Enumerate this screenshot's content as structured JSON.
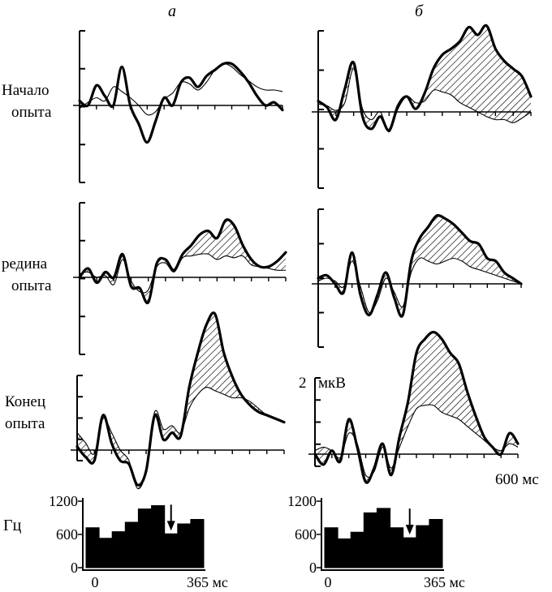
{
  "figure": {
    "column_labels": [
      "а",
      "б"
    ],
    "row_labels": [
      {
        "line1": "Начало",
        "line2": "опыта"
      },
      {
        "line1": "редина",
        "line2": "опыта"
      },
      {
        "line1": "Конец",
        "line2": "опыта"
      }
    ],
    "scale_label": "2",
    "scale_unit": "мкВ",
    "time_end_label": "600 мс",
    "colors": {
      "ink": "#000000",
      "background": "#ffffff"
    }
  },
  "chart_data": [
    {
      "type": "line",
      "panel": "а / Начало опыта",
      "x": [
        0,
        25,
        50,
        75,
        100,
        125,
        150,
        175,
        200,
        225,
        250,
        275,
        300,
        325,
        350,
        375,
        400,
        425,
        450,
        475,
        500,
        525,
        550,
        575,
        600
      ],
      "series": [
        {
          "style": "thick",
          "values": [
            0.3,
            0,
            1.3,
            0.6,
            0,
            2.5,
            0,
            -1.2,
            -2.4,
            -1.0,
            0.5,
            0,
            1.5,
            1.8,
            1.2,
            1.9,
            2.3,
            2.7,
            2.7,
            2.2,
            1.5,
            0.6,
            0,
            0.2,
            -0.3
          ]
        },
        {
          "style": "thin",
          "values": [
            -0.2,
            0.2,
            0.5,
            0.3,
            1.2,
            0.9,
            0.5,
            0,
            -0.6,
            -0.4,
            0.4,
            0.8,
            1.5,
            1.4,
            1.0,
            1.5,
            2.3,
            2.7,
            2.5,
            2.0,
            1.6,
            1.2,
            1.0,
            1.0,
            0.9
          ]
        }
      ],
      "shaded_between": false
    },
    {
      "type": "line",
      "panel": "б / Начало опыта",
      "x": [
        0,
        25,
        50,
        75,
        100,
        125,
        150,
        175,
        200,
        225,
        250,
        275,
        300,
        325,
        350,
        375,
        400,
        425,
        450,
        475,
        500,
        525,
        550,
        575,
        600
      ],
      "series": [
        {
          "style": "thick",
          "values": [
            0.7,
            0.3,
            -0.5,
            1.5,
            3.2,
            -0.3,
            -1.1,
            -0.3,
            -1.2,
            0.4,
            1.0,
            0.2,
            1.2,
            2.8,
            3.7,
            4.1,
            4.6,
            5.5,
            5.0,
            5.6,
            4.1,
            3.3,
            2.8,
            2.3,
            1.0
          ]
        },
        {
          "style": "thin",
          "values": [
            0.5,
            0.4,
            0.1,
            0.6,
            2.8,
            0.2,
            -0.5,
            0,
            -1.3,
            0.2,
            1.0,
            0.6,
            0.7,
            1.4,
            1.3,
            1.1,
            0.6,
            0.3,
            0,
            -0.3,
            -0.5,
            -0.5,
            -0.7,
            -0.4,
            0
          ]
        }
      ],
      "shaded_between": true
    },
    {
      "type": "line",
      "panel": "а / Середина опыта",
      "x": [
        0,
        25,
        50,
        75,
        100,
        125,
        150,
        175,
        200,
        225,
        250,
        275,
        300,
        325,
        350,
        375,
        400,
        425,
        450,
        475,
        500,
        525,
        550,
        575,
        600
      ],
      "series": [
        {
          "style": "thick",
          "values": [
            0,
            0.5,
            -0.3,
            0.3,
            0,
            1.3,
            -0.5,
            -0.6,
            -1.4,
            0.8,
            1.0,
            0.4,
            1.3,
            1.8,
            2.4,
            2.6,
            2.2,
            3.2,
            2.9,
            1.8,
            1.0,
            0.6,
            0.6,
            0.9,
            1.4
          ]
        },
        {
          "style": "thin",
          "values": [
            0.2,
            0.3,
            0,
            0.1,
            -0.4,
            1.0,
            -0.2,
            -0.8,
            -0.7,
            0.6,
            0.8,
            0.3,
            1.1,
            1.2,
            1.3,
            1.3,
            1.0,
            1.2,
            1.1,
            1.2,
            0.7,
            0.6,
            0.5,
            0.4,
            0.4
          ]
        }
      ],
      "shaded_between": true
    },
    {
      "type": "line",
      "panel": "б / Середина опыта",
      "x": [
        0,
        25,
        50,
        75,
        100,
        125,
        150,
        175,
        200,
        225,
        250,
        275,
        300,
        325,
        350,
        375,
        400,
        425,
        450,
        475,
        500,
        525,
        550,
        575,
        600
      ],
      "series": [
        {
          "style": "thick",
          "values": [
            0.2,
            0.3,
            0,
            -0.3,
            1.1,
            -0.4,
            -1.1,
            -0.4,
            0.4,
            -0.5,
            -1.1,
            0.8,
            1.6,
            2.0,
            2.4,
            2.3,
            2.1,
            1.8,
            1.5,
            1.4,
            0.9,
            0.8,
            0.4,
            0.2,
            0
          ]
        },
        {
          "style": "thin",
          "values": [
            0.1,
            0.2,
            0.1,
            -0.1,
            0.8,
            -0.1,
            -1.0,
            -0.6,
            0.2,
            -0.3,
            -0.8,
            0.4,
            0.9,
            0.8,
            0.7,
            0.8,
            0.9,
            0.8,
            0.6,
            0.5,
            0.4,
            0.3,
            0.2,
            0.1,
            0
          ]
        }
      ],
      "shaded_between": true
    },
    {
      "type": "line",
      "panel": "а / Конец опыта",
      "x": [
        0,
        25,
        50,
        75,
        100,
        125,
        150,
        175,
        200,
        225,
        250,
        275,
        300,
        325,
        350,
        375,
        400,
        425,
        450,
        475,
        500,
        525,
        550,
        575,
        600
      ],
      "series": [
        {
          "style": "thick",
          "values": [
            0.1,
            -0.2,
            -0.3,
            1.0,
            0.2,
            -0.3,
            -0.4,
            -1.0,
            -0.6,
            1.0,
            0.3,
            0.5,
            0.4,
            1.8,
            2.8,
            3.6,
            3.9,
            2.8,
            2.1,
            1.6,
            1.3,
            1.1,
            1.0,
            0.9,
            0.8
          ]
        },
        {
          "style": "thin",
          "values": [
            0.5,
            0.2,
            -0.1,
            0.9,
            0.5,
            0,
            -0.3,
            -1.1,
            -0.6,
            1.1,
            0.6,
            0.7,
            0.5,
            1.2,
            1.6,
            1.8,
            1.7,
            1.6,
            1.5,
            1.5,
            1.4,
            1.2,
            1.0,
            0.9,
            0.8
          ]
        }
      ],
      "shaded_between": true
    },
    {
      "type": "line",
      "panel": "б / Конец опыта",
      "x": [
        0,
        25,
        50,
        75,
        100,
        125,
        150,
        175,
        200,
        225,
        250,
        275,
        300,
        325,
        350,
        375,
        400,
        425,
        450,
        475,
        500,
        525,
        550,
        575,
        600
      ],
      "series": [
        {
          "style": "thick",
          "values": [
            0,
            -0.3,
            0.1,
            -0.2,
            1.0,
            0.2,
            -0.8,
            -0.4,
            0.3,
            -0.6,
            0.5,
            1.5,
            2.9,
            3.3,
            3.5,
            3.3,
            2.9,
            2.6,
            1.8,
            1.1,
            0.5,
            0.2,
            0,
            0.6,
            0.3
          ]
        },
        {
          "style": "thin",
          "values": [
            0.1,
            0.2,
            0.1,
            -0.1,
            0.6,
            0.3,
            -0.6,
            -0.5,
            0.2,
            -0.4,
            0.2,
            0.8,
            1.3,
            1.4,
            1.4,
            1.2,
            1.1,
            1.0,
            0.8,
            0.6,
            0.4,
            0.2,
            0.1,
            0.3,
            0.2
          ]
        }
      ],
      "shaded_between": true
    },
    {
      "type": "bar",
      "panel": "а / histogram",
      "ylabel": "Гц",
      "yticks": [
        "0",
        "600",
        "1200"
      ],
      "ylim": [
        0,
        1200
      ],
      "x_start_label": "0",
      "x_end_label": "365 мс",
      "values": [
        720,
        530,
        650,
        820,
        1060,
        1120,
        610,
        790,
        870
      ],
      "arrow_bin": 6
    },
    {
      "type": "bar",
      "panel": "б / histogram",
      "ylabel": "",
      "yticks": [
        "0",
        "600",
        "1200"
      ],
      "ylim": [
        0,
        1200
      ],
      "x_start_label": "0",
      "x_end_label": "365 мс",
      "values": [
        720,
        520,
        640,
        990,
        1070,
        720,
        540,
        760,
        870
      ],
      "arrow_bin": 6
    }
  ]
}
